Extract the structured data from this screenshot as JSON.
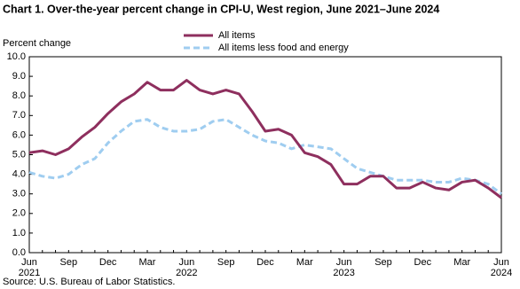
{
  "chart_data": {
    "type": "line",
    "title": "Chart 1. Over-the-year percent change in CPI-U, West region, June 2021–June 2024",
    "y_label": "Percent change",
    "source": "Source: U.S. Bureau of Labor Statistics.",
    "categories": [
      "Jun",
      null,
      null,
      "Sep",
      null,
      null,
      "Dec",
      null,
      null,
      "Mar",
      null,
      null,
      "Jun",
      null,
      null,
      "Sep",
      null,
      null,
      "Dec",
      null,
      null,
      "Mar",
      null,
      null,
      "Jun",
      null,
      null,
      "Sep",
      null,
      null,
      "Dec",
      null,
      null,
      "Mar",
      null,
      null,
      "Jun"
    ],
    "years": [
      "2021",
      null,
      null,
      null,
      null,
      null,
      null,
      null,
      null,
      null,
      null,
      null,
      "2022",
      null,
      null,
      null,
      null,
      null,
      null,
      null,
      null,
      null,
      null,
      null,
      "2023",
      null,
      null,
      null,
      null,
      null,
      null,
      null,
      null,
      null,
      null,
      null,
      "2024"
    ],
    "series": [
      {
        "name": "All items",
        "color": "#8e2f5e",
        "line_style": "solid",
        "values": [
          5.1,
          5.2,
          5.0,
          5.3,
          5.9,
          6.4,
          7.1,
          7.7,
          8.1,
          8.7,
          8.3,
          8.3,
          8.8,
          8.3,
          8.1,
          8.3,
          8.1,
          7.2,
          6.2,
          6.3,
          6.0,
          5.1,
          4.9,
          4.5,
          3.5,
          3.5,
          3.9,
          3.9,
          3.3,
          3.3,
          3.6,
          3.3,
          3.2,
          3.6,
          3.7,
          3.3,
          2.8
        ]
      },
      {
        "name": "All items less food and energy",
        "color": "#9fcdf0",
        "line_style": "dashed",
        "values": [
          4.1,
          3.9,
          3.8,
          4.0,
          4.5,
          4.8,
          5.6,
          6.2,
          6.7,
          6.8,
          6.4,
          6.2,
          6.2,
          6.3,
          6.7,
          6.8,
          6.4,
          6.0,
          5.7,
          5.6,
          5.3,
          5.5,
          5.4,
          5.3,
          4.8,
          4.3,
          4.1,
          3.9,
          3.7,
          3.7,
          3.7,
          3.6,
          3.6,
          3.8,
          3.7,
          3.5,
          3.0
        ]
      }
    ],
    "ylim": [
      0,
      10
    ],
    "yticks": [
      {
        "value": 0,
        "label": "0.0"
      },
      {
        "value": 1,
        "label": "1.0"
      },
      {
        "value": 2,
        "label": "2.0"
      },
      {
        "value": 3,
        "label": "3.0"
      },
      {
        "value": 4,
        "label": "4.0"
      },
      {
        "value": 5,
        "label": "5.0"
      },
      {
        "value": 6,
        "label": "6.0"
      },
      {
        "value": 7,
        "label": "7.0"
      },
      {
        "value": 8,
        "label": "8.0"
      },
      {
        "value": 9,
        "label": "9.0"
      },
      {
        "value": 10,
        "label": "10.0"
      }
    ],
    "grid": false
  }
}
